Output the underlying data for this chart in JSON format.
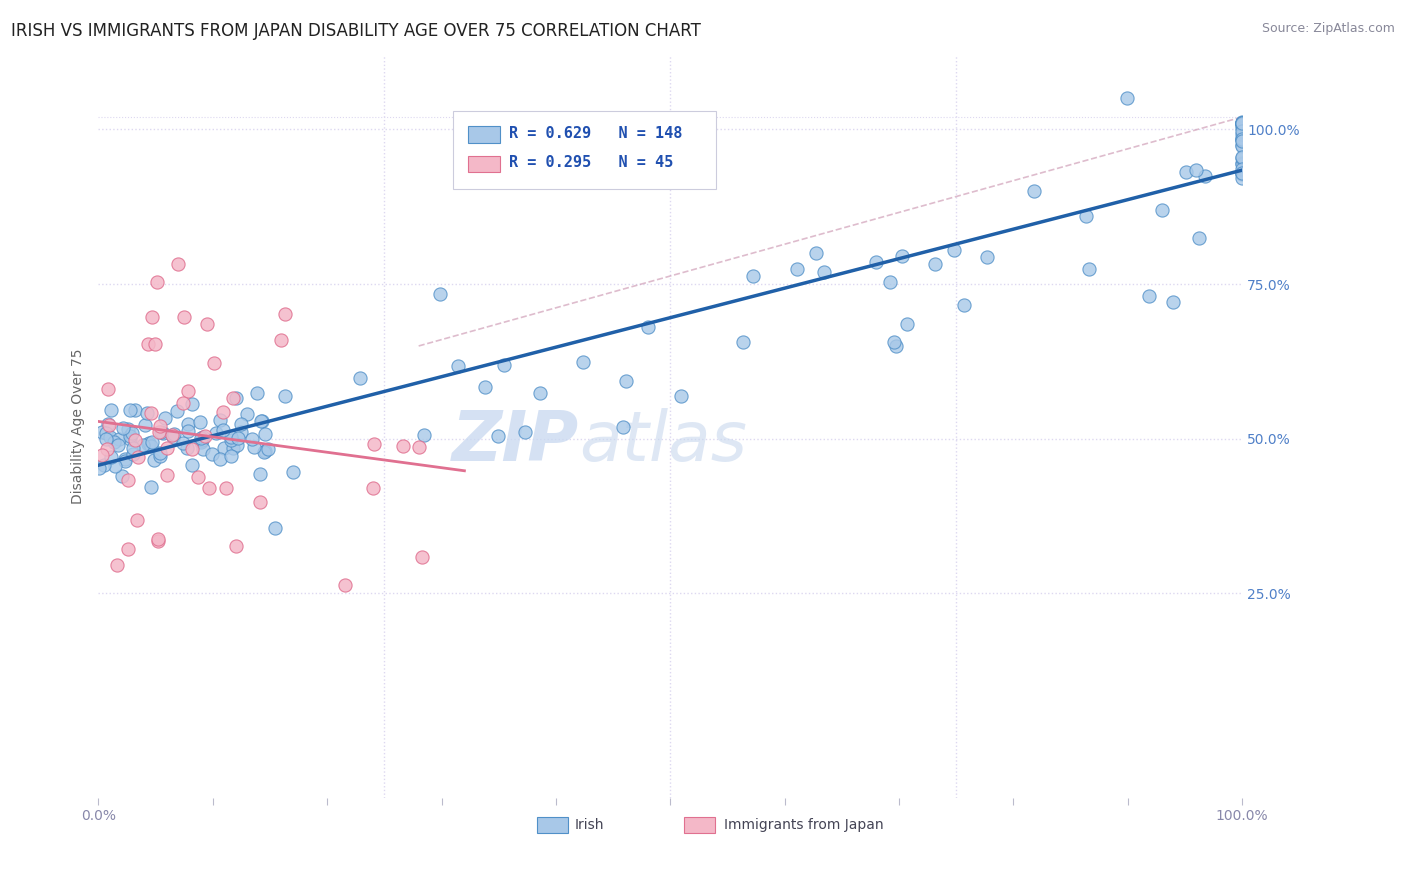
{
  "title": "IRISH VS IMMIGRANTS FROM JAPAN DISABILITY AGE OVER 75 CORRELATION CHART",
  "source": "Source: ZipAtlas.com",
  "xlabel_irish": "Irish",
  "xlabel_japan": "Immigrants from Japan",
  "ylabel": "Disability Age Over 75",
  "watermark_zip": "ZIP",
  "watermark_atlas": "atlas",
  "R_irish": 0.629,
  "N_irish": 148,
  "R_japan": 0.295,
  "N_japan": 45,
  "irish_fill": "#a8c8e8",
  "ireland_edge": "#5090c8",
  "japan_fill": "#f4b8c8",
  "japan_edge": "#e07090",
  "irish_line_color": "#2060a8",
  "japan_line_color": "#e07090",
  "conf_line_color": "#d0a0b8",
  "conf_irish_color": "#c8d8f0",
  "xlim_min": 0.0,
  "xlim_max": 1.0,
  "ylim_min": -0.08,
  "ylim_max": 1.12,
  "title_fontsize": 12,
  "source_fontsize": 9,
  "axis_label_fontsize": 10,
  "tick_fontsize": 10,
  "legend_fontsize": 11,
  "watermark_fontsize": 50,
  "background_color": "#ffffff",
  "grid_color": "#ddd8f0",
  "grid_style": "dotted",
  "right_tick_color": "#5080c8",
  "bottom_tick_color": "#8888aa"
}
